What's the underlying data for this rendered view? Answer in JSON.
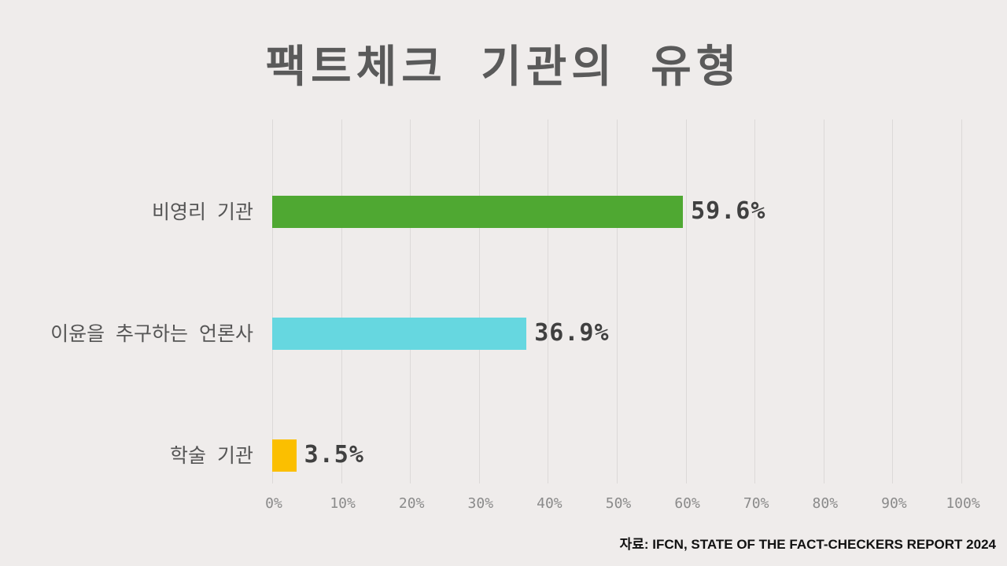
{
  "title": "팩트체크 기관의 유형",
  "source": "자료: IFCN, STATE OF THE FACT-CHECKERS REPORT 2024",
  "chart_data": {
    "type": "bar",
    "orientation": "horizontal",
    "title": "팩트체크 기관의 유형",
    "categories": [
      "비영리 기관",
      "이윤을 추구하는 언론사",
      "학술 기관"
    ],
    "values": [
      59.6,
      36.9,
      3.5
    ],
    "value_labels": [
      "59.6%",
      "36.9%",
      "3.5%"
    ],
    "colors": [
      "#4fa832",
      "#66d7e0",
      "#fbbf00"
    ],
    "xlabel": "",
    "ylabel": "",
    "xlim": [
      0,
      100
    ],
    "x_ticks": [
      "0%",
      "10%",
      "20%",
      "30%",
      "40%",
      "50%",
      "60%",
      "70%",
      "80%",
      "90%",
      "100%"
    ],
    "grid": true,
    "legend": "none",
    "source": "자료: IFCN, STATE OF THE FACT-CHECKERS REPORT 2024"
  }
}
